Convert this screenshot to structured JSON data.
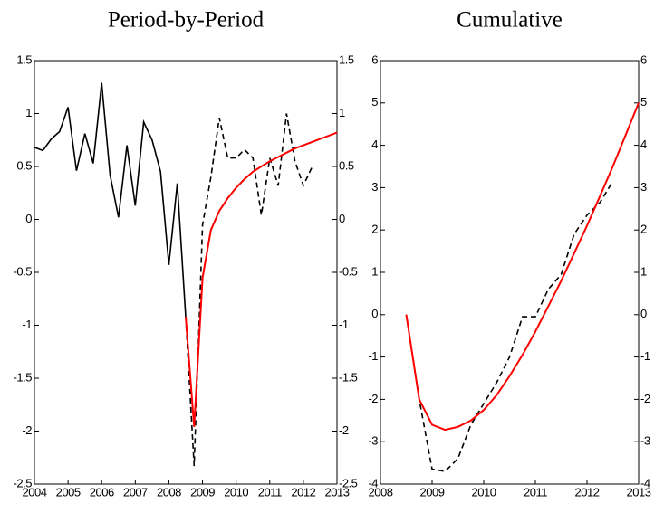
{
  "chart_data": [
    {
      "type": "line",
      "title": "Period-by-Period",
      "xlim": [
        2004,
        2013
      ],
      "xticks": [
        2004,
        2005,
        2006,
        2007,
        2008,
        2009,
        2010,
        2011,
        2012,
        2013
      ],
      "ylim": [
        -2.5,
        1.5
      ],
      "yticks": [
        -2.5,
        -2,
        -1.5,
        -1,
        -0.5,
        0,
        0.5,
        1,
        1.5
      ],
      "series": [
        {
          "color": "#000000",
          "linestyle": "solid",
          "x": [
            2004,
            2004.25,
            2004.5,
            2004.75,
            2005,
            2005.25,
            2005.5,
            2005.75,
            2006,
            2006.25,
            2006.5,
            2006.75,
            2007,
            2007.25,
            2007.5,
            2007.75,
            2008,
            2008.25,
            2008.5
          ],
          "values": [
            0.68,
            0.65,
            0.76,
            0.83,
            1.06,
            0.46,
            0.81,
            0.53,
            1.29,
            0.42,
            0.02,
            0.7,
            0.13,
            0.92,
            0.75,
            0.45,
            -0.43,
            0.34,
            -0.92
          ]
        },
        {
          "color": "#000000",
          "linestyle": "dashed",
          "x": [
            2008.5,
            2008.75,
            2009,
            2009.25,
            2009.5,
            2009.75,
            2010,
            2010.25,
            2010.5,
            2010.75,
            2011,
            2011.25,
            2011.5,
            2011.75,
            2012,
            2012.25
          ],
          "values": [
            -0.92,
            -2.33,
            -0.05,
            0.4,
            0.96,
            0.58,
            0.58,
            0.66,
            0.58,
            0.04,
            0.58,
            0.32,
            1.0,
            0.55,
            0.32,
            0.49
          ]
        },
        {
          "color": "#ff0000",
          "linestyle": "solid",
          "x": [
            2008.5,
            2008.75,
            2009,
            2009.25,
            2009.5,
            2009.75,
            2010,
            2010.25,
            2010.5,
            2010.75,
            2011,
            2011.25,
            2011.5,
            2011.75,
            2012,
            2012.25,
            2012.5,
            2012.75,
            2013
          ],
          "values": [
            -0.92,
            -1.96,
            -0.55,
            -0.1,
            0.08,
            0.2,
            0.3,
            0.38,
            0.45,
            0.5,
            0.55,
            0.59,
            0.63,
            0.67,
            0.7,
            0.73,
            0.76,
            0.79,
            0.82
          ]
        }
      ]
    },
    {
      "type": "line",
      "title": "Cumulative",
      "xlim": [
        2008,
        2013
      ],
      "xticks": [
        2008,
        2009,
        2010,
        2011,
        2012,
        2013
      ],
      "ylim": [
        -4,
        6
      ],
      "yticks": [
        -4,
        -3,
        -2,
        -1,
        0,
        1,
        2,
        3,
        4,
        5,
        6
      ],
      "series": [
        {
          "color": "#000000",
          "linestyle": "dashed",
          "x": [
            2008.5,
            2008.75,
            2009,
            2009.25,
            2009.5,
            2009.75,
            2010,
            2010.25,
            2010.5,
            2010.75,
            2011,
            2011.25,
            2011.5,
            2011.75,
            2012,
            2012.25,
            2012.5
          ],
          "values": [
            0,
            -2.0,
            -3.65,
            -3.7,
            -3.4,
            -2.6,
            -2.1,
            -1.6,
            -1.0,
            -0.05,
            -0.05,
            0.6,
            0.95,
            1.9,
            2.35,
            2.65,
            3.15
          ]
        },
        {
          "color": "#ff0000",
          "linestyle": "solid",
          "x": [
            2008.5,
            2008.75,
            2009,
            2009.25,
            2009.5,
            2009.75,
            2010,
            2010.25,
            2010.5,
            2010.75,
            2011,
            2011.25,
            2011.5,
            2011.75,
            2012,
            2012.25,
            2012.5,
            2012.75,
            2013
          ],
          "values": [
            0,
            -2.0,
            -2.6,
            -2.72,
            -2.65,
            -2.5,
            -2.25,
            -1.9,
            -1.45,
            -0.95,
            -0.4,
            0.2,
            0.8,
            1.45,
            2.1,
            2.8,
            3.5,
            4.25,
            5.0
          ]
        }
      ]
    }
  ]
}
